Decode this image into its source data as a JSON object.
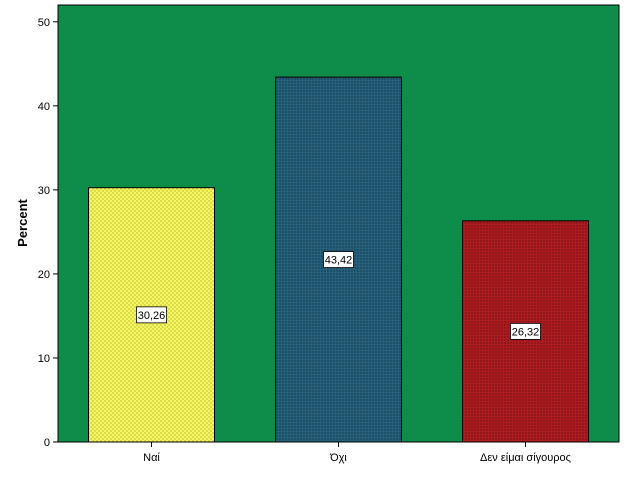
{
  "chart_data": {
    "type": "bar",
    "categories": [
      "Ναί",
      "Όχι",
      "Δεν είμαι σίγουρος"
    ],
    "values": [
      30.26,
      43.42,
      26.32
    ],
    "value_labels": [
      "30,26",
      "43,42",
      "26,32"
    ],
    "title": "",
    "xlabel": "",
    "ylabel": "Percent",
    "ylim": [
      0,
      52
    ],
    "yticks": [
      0,
      10,
      20,
      30,
      40,
      50
    ],
    "grid": false,
    "legend": "none",
    "colors": {
      "plot_background": "#0e8c4a",
      "bars": [
        "#f2f25c",
        "#235a73",
        "#a8181c"
      ]
    }
  }
}
